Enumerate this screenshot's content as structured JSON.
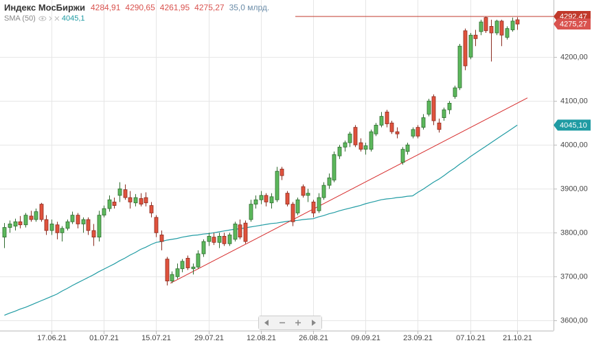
{
  "chart_data": {
    "type": "candlestick",
    "title": "Индекс МосБиржи",
    "ohlc_labels": [
      "4284,91",
      "4290,65",
      "4261,95",
      "4275,27"
    ],
    "volume_label": "35,0 млрд.",
    "up_color": "#5cb85c",
    "down_color": "#e0523d",
    "categories": [
      null,
      null,
      null,
      null,
      null,
      null,
      null,
      null,
      null,
      "17.06.21",
      null,
      null,
      null,
      null,
      null,
      null,
      null,
      null,
      null,
      "01.07.21",
      null,
      null,
      null,
      null,
      null,
      null,
      null,
      null,
      null,
      "15.07.21",
      null,
      null,
      null,
      null,
      null,
      null,
      null,
      null,
      null,
      "29.07.21",
      null,
      null,
      null,
      null,
      null,
      null,
      null,
      null,
      null,
      "12.08.21",
      null,
      null,
      null,
      null,
      null,
      null,
      null,
      null,
      null,
      "26.08.21",
      null,
      null,
      null,
      null,
      null,
      null,
      null,
      null,
      null,
      "09.09.21",
      null,
      null,
      null,
      null,
      null,
      null,
      null,
      null,
      null,
      "23.09.21",
      null,
      null,
      null,
      null,
      null,
      null,
      null,
      null,
      null,
      "07.10.21",
      null,
      null,
      null,
      null,
      null,
      null,
      null,
      null,
      "21.10.21"
    ],
    "ohlc": [
      [
        3790,
        3822,
        3765,
        3812
      ],
      [
        3812,
        3828,
        3800,
        3820
      ],
      [
        3815,
        3832,
        3805,
        3825
      ],
      [
        3825,
        3838,
        3810,
        3818
      ],
      [
        3818,
        3845,
        3812,
        3840
      ],
      [
        3838,
        3850,
        3825,
        3830
      ],
      [
        3830,
        3855,
        3825,
        3848
      ],
      [
        3865,
        3868,
        3825,
        3830
      ],
      [
        3830,
        3840,
        3795,
        3805
      ],
      [
        3805,
        3830,
        3795,
        3820
      ],
      [
        3818,
        3825,
        3785,
        3800
      ],
      [
        3800,
        3815,
        3780,
        3810
      ],
      [
        3810,
        3830,
        3805,
        3825
      ],
      [
        3825,
        3848,
        3820,
        3840
      ],
      [
        3840,
        3845,
        3810,
        3820
      ],
      [
        3820,
        3835,
        3800,
        3830
      ],
      [
        3830,
        3835,
        3795,
        3805
      ],
      [
        3805,
        3820,
        3770,
        3790
      ],
      [
        3790,
        3850,
        3780,
        3840
      ],
      [
        3840,
        3862,
        3835,
        3855
      ],
      [
        3855,
        3885,
        3848,
        3875
      ],
      [
        3870,
        3880,
        3855,
        3862
      ],
      [
        3885,
        3915,
        3870,
        3900
      ],
      [
        3898,
        3910,
        3875,
        3880
      ],
      [
        3880,
        3895,
        3855,
        3870
      ],
      [
        3868,
        3888,
        3860,
        3880
      ],
      [
        3878,
        3890,
        3860,
        3865
      ],
      [
        3880,
        3892,
        3860,
        3868
      ],
      [
        3862,
        3870,
        3835,
        3845
      ],
      [
        3835,
        3840,
        3790,
        3800
      ],
      [
        3795,
        3805,
        3760,
        3780
      ],
      [
        3740,
        3745,
        3680,
        3690
      ],
      [
        3690,
        3712,
        3685,
        3705
      ],
      [
        3700,
        3730,
        3695,
        3718
      ],
      [
        3718,
        3740,
        3710,
        3735
      ],
      [
        3742,
        3748,
        3715,
        3720
      ],
      [
        3718,
        3730,
        3705,
        3722
      ],
      [
        3722,
        3760,
        3718,
        3752
      ],
      [
        3752,
        3785,
        3745,
        3780
      ],
      [
        3780,
        3800,
        3770,
        3792
      ],
      [
        3790,
        3800,
        3772,
        3778
      ],
      [
        3778,
        3800,
        3765,
        3792
      ],
      [
        3792,
        3800,
        3770,
        3775
      ],
      [
        3775,
        3800,
        3770,
        3795
      ],
      [
        3785,
        3825,
        3780,
        3820
      ],
      [
        3818,
        3830,
        3785,
        3790
      ],
      [
        3822,
        3828,
        3775,
        3780
      ],
      [
        3830,
        3875,
        3825,
        3865
      ],
      [
        3865,
        3885,
        3855,
        3875
      ],
      [
        3875,
        3895,
        3865,
        3885
      ],
      [
        3885,
        3890,
        3860,
        3870
      ],
      [
        3868,
        3890,
        3855,
        3882
      ],
      [
        3875,
        3950,
        3870,
        3940
      ],
      [
        3945,
        3950,
        3920,
        3930
      ],
      [
        3890,
        3895,
        3860,
        3865
      ],
      [
        3865,
        3870,
        3815,
        3825
      ],
      [
        3845,
        3880,
        3840,
        3875
      ],
      [
        3905,
        3910,
        3880,
        3885
      ],
      [
        3885,
        3900,
        3870,
        3890
      ],
      [
        3870,
        3875,
        3835,
        3845
      ],
      [
        3850,
        3890,
        3845,
        3880
      ],
      [
        3880,
        3915,
        3875,
        3908
      ],
      [
        3908,
        3935,
        3900,
        3925
      ],
      [
        3920,
        3985,
        3915,
        3978
      ],
      [
        3975,
        4000,
        3968,
        3995
      ],
      [
        3995,
        4010,
        3985,
        4005
      ],
      [
        4005,
        4030,
        3995,
        4025
      ],
      [
        4040,
        4045,
        3995,
        4000
      ],
      [
        4005,
        4015,
        3985,
        3990
      ],
      [
        3990,
        4005,
        3978,
        3998
      ],
      [
        3990,
        4035,
        3985,
        4030
      ],
      [
        4025,
        4050,
        4020,
        4045
      ],
      [
        4045,
        4075,
        4040,
        4065
      ],
      [
        4075,
        4080,
        4040,
        4048
      ],
      [
        4050,
        4055,
        4025,
        4030
      ],
      [
        4030,
        4040,
        4015,
        4025
      ],
      [
        3960,
        3995,
        3955,
        3990
      ],
      [
        3985,
        4005,
        3978,
        4000
      ],
      [
        4020,
        4040,
        4015,
        4035
      ],
      [
        4040,
        4045,
        4015,
        4020
      ],
      [
        4040,
        4070,
        4035,
        4062
      ],
      [
        4070,
        4105,
        4065,
        4100
      ],
      [
        4110,
        4115,
        4045,
        4055
      ],
      [
        4050,
        4060,
        4028,
        4035
      ],
      [
        4062,
        4085,
        4055,
        4080
      ],
      [
        4080,
        4100,
        4070,
        4095
      ],
      [
        4110,
        4135,
        4105,
        4130
      ],
      [
        4130,
        4230,
        4125,
        4225
      ],
      [
        4260,
        4265,
        4170,
        4180
      ],
      [
        4200,
        4255,
        4195,
        4250
      ],
      [
        4250,
        4262,
        4225,
        4242
      ],
      [
        4258,
        4285,
        4250,
        4280
      ],
      [
        4290,
        4292.47,
        4255,
        4260
      ],
      [
        4270,
        4285,
        4190,
        4255
      ],
      [
        4255,
        4285,
        4250,
        4282
      ],
      [
        4282,
        4285,
        4225,
        4250
      ],
      [
        4245,
        4270,
        4240,
        4265
      ],
      [
        4262,
        4290,
        4258,
        4282
      ],
      [
        4284.91,
        4290.65,
        4261.95,
        4275.27
      ]
    ],
    "series": [
      {
        "name": "SMA (50)",
        "color": "#1f9ba3",
        "last_label": "4045,1",
        "values": [
          3612,
          3617,
          3621,
          3626,
          3630,
          3635,
          3640,
          3645,
          3650,
          3655,
          3660,
          3667,
          3673,
          3680,
          3686,
          3692,
          3698,
          3704,
          3711,
          3717,
          3723,
          3729,
          3736,
          3742,
          3749,
          3755,
          3762,
          3767,
          3773,
          3778,
          3780,
          3783,
          3785,
          3787,
          3790,
          3792,
          3794,
          3795,
          3797,
          3798,
          3800,
          3802,
          3804,
          3806,
          3808,
          3809,
          3811,
          3813,
          3815,
          3817,
          3819,
          3821,
          3822,
          3824,
          3826,
          3827,
          3828,
          3830,
          3831,
          3832,
          3836,
          3839,
          3843,
          3846,
          3850,
          3853,
          3856,
          3859,
          3862,
          3866,
          3869,
          3872,
          3875,
          3877,
          3878,
          3880,
          3881,
          3883,
          3884,
          3892,
          3899,
          3907,
          3915,
          3922,
          3930,
          3939,
          3947,
          3956,
          3964,
          3973,
          3981,
          3989,
          3997,
          4005,
          4013,
          4021,
          4029,
          4037,
          4045.1
        ]
      }
    ],
    "trend_line": {
      "start": 3685,
      "end": 4107,
      "color": "#d62b2b"
    },
    "price_tags": [
      {
        "value": 4292.47,
        "label": "4292,47",
        "color": "#c0392b"
      },
      {
        "value": 4275.27,
        "label": "4275,27",
        "color": "#d9534f"
      },
      {
        "value": 4045.1,
        "label": "4045,10",
        "color": "#1f9ba3"
      }
    ],
    "ylim": [
      3577,
      4330
    ],
    "yticks": [
      {
        "value": 3600,
        "label": "3600,00"
      },
      {
        "value": 3700,
        "label": "3700,00"
      },
      {
        "value": 3800,
        "label": "3800,00"
      },
      {
        "value": 3900,
        "label": "3900,00"
      },
      {
        "value": 4000,
        "label": "4000,00"
      },
      {
        "value": 4100,
        "label": "4100,00"
      },
      {
        "value": 4200,
        "label": "4200,00"
      }
    ],
    "grid": true
  }
}
